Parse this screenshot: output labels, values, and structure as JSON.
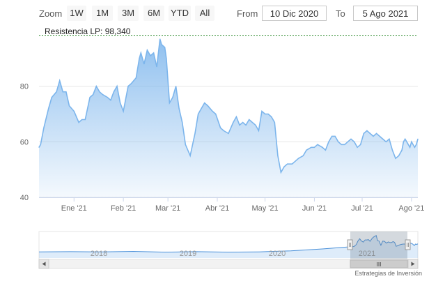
{
  "toolbar": {
    "zoom_label": "Zoom",
    "zoom_buttons": [
      "1W",
      "1M",
      "3M",
      "6M",
      "YTD",
      "All"
    ],
    "from_label": "From",
    "from_value": "10 Dic 2020",
    "to_label": "To",
    "to_value": "5 Ago 2021"
  },
  "resistance": {
    "label": "Resistencia LP: 98,340",
    "value": 98.34,
    "color": "#2e8b2e"
  },
  "colors": {
    "series": "#7cb5ec",
    "navigator_series": "#4a90d9",
    "axis": "#ccd6eb",
    "grid": "#e6e6e6"
  },
  "chart_data": {
    "type": "area",
    "title": "",
    "xlabel": "",
    "ylabel": "",
    "ylim": [
      40,
      98
    ],
    "yticks": [
      40,
      60,
      80
    ],
    "xlim": [
      "2020-12-10",
      "2021-08-05"
    ],
    "xticks": [
      {
        "date": "2021-01-01",
        "label": "Ene '21"
      },
      {
        "date": "2021-02-01",
        "label": "Feb '21"
      },
      {
        "date": "2021-03-01",
        "label": "Mar '21"
      },
      {
        "date": "2021-04-01",
        "label": "Abr '21"
      },
      {
        "date": "2021-05-01",
        "label": "May '21"
      },
      {
        "date": "2021-06-01",
        "label": "Jun '21"
      },
      {
        "date": "2021-07-01",
        "label": "Jul '21"
      },
      {
        "date": "2021-08-01",
        "label": "Ago '21"
      }
    ],
    "series": [
      {
        "points": [
          [
            "2020-12-10",
            58
          ],
          [
            "2020-12-11",
            59
          ],
          [
            "2020-12-13",
            65
          ],
          [
            "2020-12-16",
            72
          ],
          [
            "2020-12-18",
            76
          ],
          [
            "2020-12-21",
            78
          ],
          [
            "2020-12-23",
            82
          ],
          [
            "2020-12-25",
            78
          ],
          [
            "2020-12-27",
            78
          ],
          [
            "2020-12-29",
            73
          ],
          [
            "2021-01-01",
            71
          ],
          [
            "2021-01-04",
            67
          ],
          [
            "2021-01-06",
            68
          ],
          [
            "2021-01-08",
            68
          ],
          [
            "2021-01-11",
            76
          ],
          [
            "2021-01-13",
            77
          ],
          [
            "2021-01-15",
            80
          ],
          [
            "2021-01-17",
            78
          ],
          [
            "2021-01-19",
            77
          ],
          [
            "2021-01-22",
            76
          ],
          [
            "2021-01-24",
            75
          ],
          [
            "2021-01-26",
            78
          ],
          [
            "2021-01-28",
            80
          ],
          [
            "2021-01-30",
            74
          ],
          [
            "2021-02-01",
            71
          ],
          [
            "2021-02-04",
            80
          ],
          [
            "2021-02-06",
            81
          ],
          [
            "2021-02-09",
            83
          ],
          [
            "2021-02-11",
            90
          ],
          [
            "2021-02-12",
            92
          ],
          [
            "2021-02-14",
            88
          ],
          [
            "2021-02-16",
            93
          ],
          [
            "2021-02-18",
            91
          ],
          [
            "2021-02-20",
            92
          ],
          [
            "2021-02-22",
            87
          ],
          [
            "2021-02-24",
            97
          ],
          [
            "2021-02-25",
            95
          ],
          [
            "2021-02-27",
            94
          ],
          [
            "2021-02-28",
            90
          ],
          [
            "2021-03-02",
            74
          ],
          [
            "2021-03-04",
            76
          ],
          [
            "2021-03-06",
            80
          ],
          [
            "2021-03-08",
            72
          ],
          [
            "2021-03-10",
            67
          ],
          [
            "2021-03-12",
            59
          ],
          [
            "2021-03-15",
            55
          ],
          [
            "2021-03-18",
            63
          ],
          [
            "2021-03-20",
            70
          ],
          [
            "2021-03-22",
            72
          ],
          [
            "2021-03-24",
            74
          ],
          [
            "2021-03-26",
            73
          ],
          [
            "2021-03-29",
            71
          ],
          [
            "2021-03-31",
            70
          ],
          [
            "2021-04-03",
            65
          ],
          [
            "2021-04-05",
            64
          ],
          [
            "2021-04-08",
            63
          ],
          [
            "2021-04-11",
            67
          ],
          [
            "2021-04-13",
            69
          ],
          [
            "2021-04-15",
            66
          ],
          [
            "2021-04-17",
            67
          ],
          [
            "2021-04-19",
            66
          ],
          [
            "2021-04-21",
            68
          ],
          [
            "2021-04-23",
            67
          ],
          [
            "2021-04-25",
            66
          ],
          [
            "2021-04-27",
            64
          ],
          [
            "2021-04-29",
            71
          ],
          [
            "2021-05-01",
            70
          ],
          [
            "2021-05-03",
            70
          ],
          [
            "2021-05-05",
            69
          ],
          [
            "2021-05-07",
            67
          ],
          [
            "2021-05-09",
            55
          ],
          [
            "2021-05-11",
            49
          ],
          [
            "2021-05-13",
            51
          ],
          [
            "2021-05-15",
            52
          ],
          [
            "2021-05-18",
            52
          ],
          [
            "2021-05-20",
            53
          ],
          [
            "2021-05-22",
            54
          ],
          [
            "2021-05-25",
            55
          ],
          [
            "2021-05-27",
            57
          ],
          [
            "2021-05-30",
            58
          ],
          [
            "2021-06-01",
            58
          ],
          [
            "2021-06-03",
            59
          ],
          [
            "2021-06-06",
            58
          ],
          [
            "2021-06-08",
            57
          ],
          [
            "2021-06-10",
            60
          ],
          [
            "2021-06-12",
            62
          ],
          [
            "2021-06-14",
            62
          ],
          [
            "2021-06-16",
            60
          ],
          [
            "2021-06-18",
            59
          ],
          [
            "2021-06-20",
            59
          ],
          [
            "2021-06-22",
            60
          ],
          [
            "2021-06-24",
            61
          ],
          [
            "2021-06-26",
            60
          ],
          [
            "2021-06-28",
            58
          ],
          [
            "2021-06-30",
            59
          ],
          [
            "2021-07-02",
            63
          ],
          [
            "2021-07-04",
            64
          ],
          [
            "2021-07-06",
            63
          ],
          [
            "2021-07-08",
            62
          ],
          [
            "2021-07-10",
            63
          ],
          [
            "2021-07-12",
            62
          ],
          [
            "2021-07-14",
            61
          ],
          [
            "2021-07-16",
            60
          ],
          [
            "2021-07-18",
            61
          ],
          [
            "2021-07-20",
            57
          ],
          [
            "2021-07-22",
            54
          ],
          [
            "2021-07-24",
            55
          ],
          [
            "2021-07-26",
            57
          ],
          [
            "2021-07-27",
            60
          ],
          [
            "2021-07-28",
            61
          ],
          [
            "2021-07-29",
            60
          ],
          [
            "2021-07-30",
            59
          ],
          [
            "2021-07-31",
            58
          ],
          [
            "2021-08-01",
            60
          ],
          [
            "2021-08-02",
            59
          ],
          [
            "2021-08-03",
            58
          ],
          [
            "2021-08-04",
            59
          ],
          [
            "2021-08-05",
            61
          ]
        ]
      }
    ]
  },
  "navigator": {
    "year_labels": [
      "2018",
      "2019",
      "2020",
      "2021"
    ],
    "scrollbar_grip": "III"
  },
  "credit": "Estrategias de Inversión"
}
